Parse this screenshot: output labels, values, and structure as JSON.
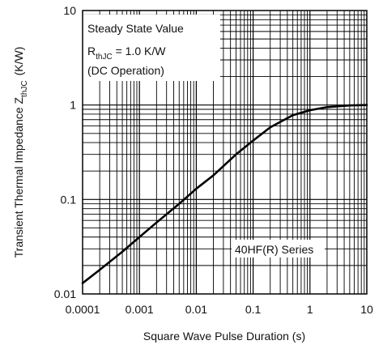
{
  "chart_data": {
    "type": "line",
    "title": "",
    "xlabel": "Square Wave Pulse Duration (s)",
    "ylabel_main": "Transient Thermal Impedance Z",
    "ylabel_sub": "thJC",
    "ylabel_unit": "(K/W)",
    "x_scale": "log",
    "y_scale": "log",
    "xlim": [
      0.0001,
      10
    ],
    "ylim": [
      0.01,
      10
    ],
    "grid": true,
    "x_ticks": [
      {
        "value": 0.0001,
        "label": "0.0001"
      },
      {
        "value": 0.001,
        "label": "0.001"
      },
      {
        "value": 0.01,
        "label": "0.01"
      },
      {
        "value": 0.1,
        "label": "0.1"
      },
      {
        "value": 1,
        "label": "1"
      },
      {
        "value": 10,
        "label": "10"
      }
    ],
    "y_ticks": [
      {
        "value": 0.01,
        "label": "0.01"
      },
      {
        "value": 0.1,
        "label": "0.1"
      },
      {
        "value": 1,
        "label": "1"
      },
      {
        "value": 10,
        "label": "10"
      }
    ],
    "annotation": {
      "line1": "Steady State Value",
      "line2_main": "R",
      "line2_sub": "thJC",
      "line2_rest": " = 1.0 K/W",
      "line3": "(DC Operation)"
    },
    "series_label": "40HF(R) Series",
    "series": [
      {
        "x": [
          0.0001,
          0.0002,
          0.0005,
          0.001,
          0.002,
          0.005,
          0.01,
          0.02,
          0.05,
          0.1,
          0.2,
          0.5,
          1,
          2,
          5,
          10
        ],
        "y": [
          0.013,
          0.018,
          0.028,
          0.04,
          0.057,
          0.09,
          0.13,
          0.18,
          0.3,
          0.42,
          0.58,
          0.78,
          0.88,
          0.95,
          0.99,
          1.0
        ]
      }
    ]
  }
}
